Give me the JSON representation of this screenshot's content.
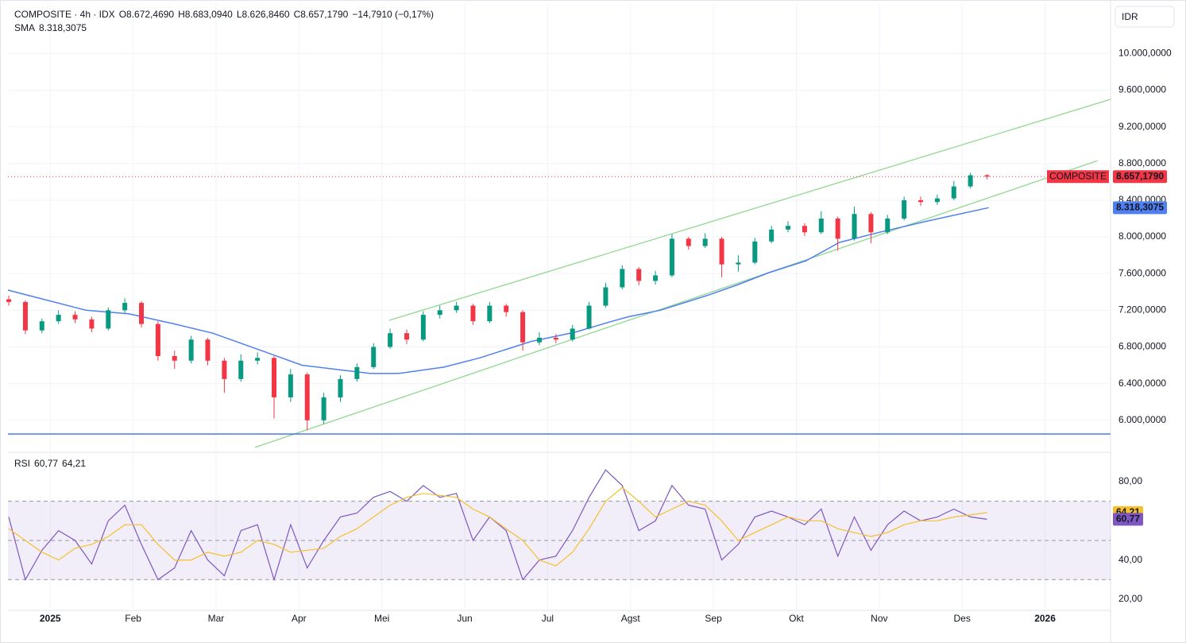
{
  "chart_data": [
    {
      "type": "candlestick",
      "title": "COMPOSITE · 4h · IDX",
      "currency": "IDR",
      "ohlc_legend": [
        {
          "key": "O",
          "label": "8.672,4690"
        },
        {
          "key": "H",
          "label": "8.683,0940"
        },
        {
          "key": "L",
          "label": "8.626,8460"
        },
        {
          "key": "C",
          "label": "8.657,1790"
        }
      ],
      "change_label": "−14,7910 (−0,17%)",
      "last_price": {
        "name": "COMPOSITE",
        "value_label": "8.657,1790",
        "color": "#f23645"
      },
      "up_color": "#089981",
      "down_color": "#f23645",
      "x": [
        -0.5,
        -0.3,
        -0.1,
        0.1,
        0.3,
        0.5,
        0.7,
        0.9,
        1.1,
        1.3,
        1.5,
        1.7,
        1.9,
        2.1,
        2.3,
        2.5,
        2.7,
        2.9,
        3.1,
        3.3,
        3.5,
        3.7,
        3.9,
        4.1,
        4.3,
        4.5,
        4.7,
        4.9,
        5.1,
        5.3,
        5.5,
        5.7,
        5.9,
        6.1,
        6.3,
        6.5,
        6.7,
        6.9,
        7.1,
        7.3,
        7.5,
        7.7,
        7.9,
        8.1,
        8.3,
        8.5,
        8.7,
        8.9,
        9.1,
        9.3,
        9.5,
        9.7,
        9.9,
        10.1,
        10.3,
        10.5,
        10.7,
        10.9,
        11.1,
        11.3
      ],
      "open": [
        7320,
        7290,
        6980,
        7080,
        7150,
        7100,
        7000,
        7200,
        7280,
        7050,
        6700,
        6650,
        6880,
        6650,
        6450,
        6650,
        6680,
        6250,
        6500,
        6000,
        6250,
        6450,
        6580,
        6800,
        6950,
        6880,
        7150,
        7200,
        7250,
        7080,
        7250,
        7180,
        6850,
        6900,
        6880,
        7000,
        7250,
        7450,
        7650,
        7520,
        7580,
        7980,
        7900,
        7980,
        7700,
        7720,
        7950,
        8080,
        8120,
        8050,
        8200,
        7980,
        8250,
        8050,
        8200,
        8400,
        8380,
        8420,
        8550,
        8672.469
      ],
      "high": [
        7360,
        7310,
        7110,
        7200,
        7190,
        7130,
        7230,
        7330,
        7300,
        7080,
        6760,
        6920,
        6900,
        6680,
        6720,
        6740,
        6700,
        6560,
        6520,
        6300,
        6490,
        6620,
        6840,
        7000,
        6990,
        7190,
        7250,
        7290,
        7270,
        7290,
        7270,
        7200,
        6960,
        6940,
        7040,
        7290,
        7500,
        7690,
        7670,
        7630,
        8030,
        8000,
        8040,
        8000,
        7800,
        7990,
        8120,
        8170,
        8150,
        8280,
        8220,
        8330,
        8270,
        8240,
        8440,
        8440,
        8460,
        8610,
        8700,
        8683.094
      ],
      "low": [
        7250,
        6940,
        6950,
        7050,
        7060,
        6960,
        6980,
        7170,
        7010,
        6650,
        6560,
        6620,
        6600,
        6300,
        6420,
        6610,
        6020,
        6200,
        5890,
        5960,
        6200,
        6420,
        6560,
        6780,
        6830,
        6860,
        7110,
        7170,
        7040,
        7060,
        7130,
        6760,
        6820,
        6840,
        6860,
        6990,
        7230,
        7430,
        7470,
        7480,
        7560,
        7860,
        7880,
        7560,
        7620,
        7700,
        7930,
        8050,
        8010,
        8030,
        7850,
        7960,
        7930,
        8030,
        8180,
        8340,
        8350,
        8400,
        8530,
        8626.846
      ],
      "close": [
        7290,
        6980,
        7080,
        7150,
        7100,
        7000,
        7200,
        7280,
        7050,
        6700,
        6650,
        6880,
        6650,
        6450,
        6650,
        6680,
        6250,
        6500,
        6000,
        6250,
        6450,
        6580,
        6800,
        6950,
        6880,
        7150,
        7200,
        7250,
        7080,
        7250,
        7180,
        6850,
        6900,
        6880,
        7000,
        7250,
        7450,
        7650,
        7520,
        7580,
        7980,
        7900,
        7980,
        7700,
        7720,
        7950,
        8080,
        8120,
        8050,
        8200,
        7980,
        8250,
        8050,
        8200,
        8400,
        8380,
        8420,
        8550,
        8671.97,
        8657.179
      ],
      "sma": {
        "name": "SMA",
        "value_label": "8.318,3075",
        "color": "#4f7ff0",
        "x": [
          -0.51,
          0.43,
          0.95,
          1.5,
          1.96,
          2.64,
          3.04,
          3.86,
          4.2,
          4.75,
          5.18,
          5.8,
          6.33,
          6.74,
          6.98,
          7.36,
          7.92,
          8.3,
          8.67,
          9.12,
          9.52,
          10.0,
          10.57,
          11.32
        ],
        "values": [
          7420,
          7200,
          7160,
          7050,
          6950,
          6730,
          6600,
          6510,
          6510,
          6580,
          6680,
          6860,
          6960,
          7070,
          7130,
          7200,
          7360,
          7480,
          7610,
          7740,
          7940,
          8050,
          8170,
          8318.3075
        ]
      },
      "drawings": [
        {
          "x": [
            4.09,
            12.79
          ],
          "values": [
            7090,
            9500
          ],
          "color": "#8fd88f"
        },
        {
          "x": [
            2.47,
            12.63
          ],
          "values": [
            5704,
            8830
          ],
          "color": "#8fd88f"
        },
        {
          "x": [
            -0.51,
            12.79
          ],
          "values": [
            5850,
            5850
          ],
          "color": "#3b6fe0"
        }
      ],
      "xlim": [
        -0.51,
        12.79
      ],
      "ylim": [
        5660,
        10540
      ],
      "yticks": [
        {
          "value": 6000,
          "label": "6.000,0000"
        },
        {
          "value": 6400,
          "label": "6.400,0000"
        },
        {
          "value": 6800,
          "label": "6.800,0000"
        },
        {
          "value": 7200,
          "label": "7.200,0000"
        },
        {
          "value": 7600,
          "label": "7.600,0000"
        },
        {
          "value": 8000,
          "label": "8.000,0000"
        },
        {
          "value": 8400,
          "label": "8.400,0000"
        },
        {
          "value": 8800,
          "label": "8.800,0000"
        },
        {
          "value": 9200,
          "label": "9.200,0000"
        },
        {
          "value": 9600,
          "label": "9.600,0000"
        },
        {
          "value": 10000,
          "label": "10.000,0000"
        }
      ],
      "grid": true
    },
    {
      "type": "line",
      "title": "RSI",
      "series": [
        {
          "color": "#7e57c2",
          "value_label": "60,77",
          "values": [
            62,
            30,
            45,
            55,
            50,
            38,
            60,
            68,
            48,
            30,
            36,
            55,
            40,
            32,
            55,
            58,
            30,
            58,
            36,
            50,
            62,
            64,
            72,
            75,
            70,
            78,
            72,
            74,
            50,
            62,
            55,
            30,
            40,
            42,
            55,
            72,
            86,
            78,
            55,
            60,
            78,
            68,
            66,
            40,
            48,
            62,
            65,
            62,
            58,
            66,
            42,
            62,
            45,
            58,
            65,
            60,
            62,
            66,
            62,
            60.77
          ]
        },
        {
          "color": "#f5c02b",
          "value_label": "64,21",
          "values": [
            56,
            50,
            44,
            40,
            46,
            48,
            52,
            58,
            58,
            48,
            40,
            40,
            44,
            42,
            44,
            50,
            48,
            44,
            45,
            46,
            52,
            56,
            62,
            68,
            72,
            74,
            73,
            72,
            66,
            62,
            56,
            50,
            40,
            37,
            44,
            56,
            70,
            77,
            70,
            62,
            66,
            70,
            68,
            60,
            50,
            54,
            58,
            62,
            60,
            60,
            56,
            54,
            52,
            54,
            58,
            60,
            60,
            62,
            63,
            64.21
          ]
        }
      ],
      "x": [
        -0.5,
        -0.3,
        -0.1,
        0.1,
        0.3,
        0.5,
        0.7,
        0.9,
        1.1,
        1.3,
        1.5,
        1.7,
        1.9,
        2.1,
        2.3,
        2.5,
        2.7,
        2.9,
        3.1,
        3.3,
        3.5,
        3.7,
        3.9,
        4.1,
        4.3,
        4.5,
        4.7,
        4.9,
        5.1,
        5.3,
        5.5,
        5.7,
        5.9,
        6.1,
        6.3,
        6.5,
        6.7,
        6.9,
        7.1,
        7.3,
        7.5,
        7.7,
        7.9,
        8.1,
        8.3,
        8.5,
        8.7,
        8.9,
        9.1,
        9.3,
        9.5,
        9.7,
        9.9,
        10.1,
        10.3,
        10.5,
        10.7,
        10.9,
        11.1,
        11.3
      ],
      "bands": [
        70,
        50,
        30
      ],
      "xlim": [
        -0.51,
        12.79
      ],
      "ylim": [
        14.3,
        94.6
      ],
      "yticks": [
        {
          "value": 20,
          "label": "20,00"
        },
        {
          "value": 40,
          "label": "40,00"
        },
        {
          "value": 80,
          "label": "80,00"
        }
      ],
      "xticks": [
        {
          "value": 0,
          "label": "2025"
        },
        {
          "value": 1,
          "label": "Feb"
        },
        {
          "value": 2,
          "label": "Mar"
        },
        {
          "value": 3,
          "label": "Apr"
        },
        {
          "value": 4,
          "label": "Mei"
        },
        {
          "value": 5,
          "label": "Jun"
        },
        {
          "value": 6,
          "label": "Jul"
        },
        {
          "value": 7,
          "label": "Agst"
        },
        {
          "value": 8,
          "label": "Sep"
        },
        {
          "value": 9,
          "label": "Okt"
        },
        {
          "value": 10,
          "label": "Nov"
        },
        {
          "value": 11,
          "label": "Des"
        },
        {
          "value": 12,
          "label": "2026"
        }
      ],
      "grid": true
    }
  ]
}
